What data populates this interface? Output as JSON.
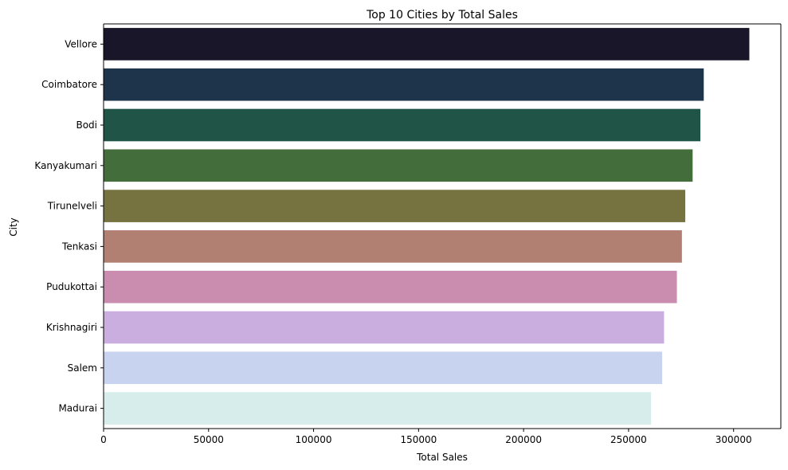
{
  "chart_data": {
    "type": "bar",
    "orientation": "horizontal",
    "title": "Top 10 Cities by Total Sales",
    "xlabel": "Total Sales",
    "ylabel": "City",
    "xlim": [
      0,
      322500
    ],
    "xticks": [
      0,
      50000,
      100000,
      150000,
      200000,
      250000,
      300000
    ],
    "grid": false,
    "categories": [
      "Vellore",
      "Coimbatore",
      "Bodi",
      "Kanyakumari",
      "Tirunelveli",
      "Tenkasi",
      "Pudukottai",
      "Krishnagiri",
      "Salem",
      "Madurai"
    ],
    "values": [
      307500,
      285800,
      284200,
      280500,
      277000,
      275400,
      273000,
      266900,
      266000,
      260700
    ],
    "colors": [
      "#1a1629",
      "#1e344b",
      "#205446",
      "#436d3a",
      "#777341",
      "#b28073",
      "#ca8caf",
      "#cbaee0",
      "#c7d3ef",
      "#d7edeb"
    ]
  }
}
